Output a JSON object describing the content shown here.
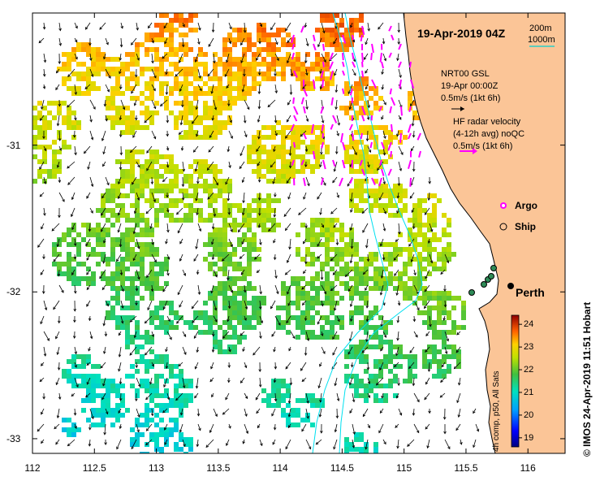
{
  "title": "19-Apr-2019 04Z",
  "scale": {
    "label_a": "200m",
    "label_b": "1000m"
  },
  "nrt_block": {
    "line1": "NRT00 GSL",
    "line2": "19-Apr 00:00Z",
    "line3": "0.5m/s (1kt 6h)"
  },
  "hf_block": {
    "line1": "HF radar velocity",
    "line2": "(4-12h avg) noQC",
    "line3": "0.5m/s (1kt 6h)"
  },
  "legend": {
    "argo": "Argo",
    "ship": "Ship"
  },
  "city": "Perth",
  "x_ticks": [
    "112",
    "112.5",
    "113",
    "113.5",
    "114",
    "114.5",
    "115",
    "115.5",
    "116"
  ],
  "y_ticks": [
    "-31",
    "-32",
    "-33"
  ],
  "colorbar": {
    "ticks": [
      "24",
      "23",
      "22",
      "21",
      "20",
      "19"
    ],
    "range": [
      18.6,
      24.4
    ],
    "label": "4h comp, p50, All Sats"
  },
  "credit": "© IMOS 24-Apr-2019 11:51 Hobart",
  "colors": {
    "land": "#fbc597",
    "hf_arrow": "#ff00ff",
    "isobath": "#00e0f0",
    "frame": "#000000"
  },
  "chart_data": {
    "type": "heatmap",
    "xlim": [
      112,
      116.3
    ],
    "ylim": [
      -33.1,
      -30.1
    ],
    "x_label": "",
    "y_label": "",
    "variable_range": [
      18.6,
      24.4
    ]
  }
}
